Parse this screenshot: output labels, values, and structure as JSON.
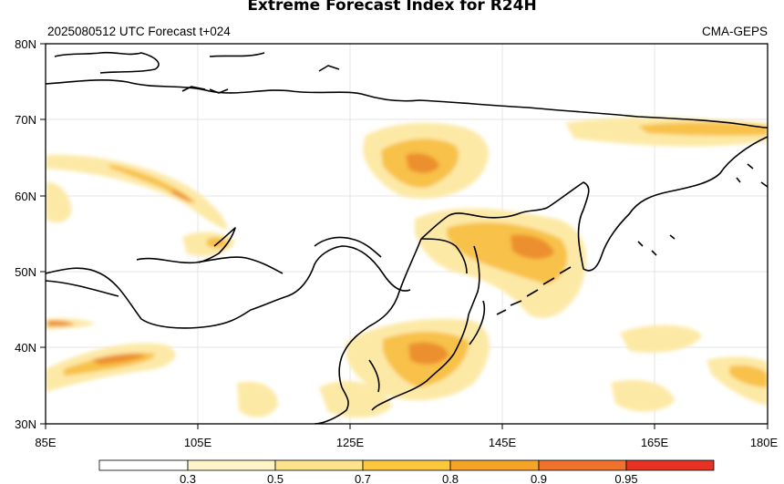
{
  "title": "Extreme Forecast Index for R24H",
  "subtitle_left": "2025080512 UTC Forecast t+024",
  "subtitle_right": "CMA-GEPS",
  "lat_labels": [
    "80N",
    "70N",
    "60N",
    "50N",
    "40N",
    "30N"
  ],
  "lon_labels": [
    "85E",
    "105E",
    "125E",
    "145E",
    "165E",
    "180E"
  ],
  "colorbar": {
    "labels": [
      "0.3",
      "0.5",
      "0.7",
      "0.8",
      "0.9",
      "0.95"
    ],
    "colors": [
      "#ffffff",
      "#fff3c8",
      "#fde48a",
      "#fbc83d",
      "#f6a427",
      "#f0732d",
      "#e63125"
    ]
  },
  "map": {
    "extent": {
      "lon": [
        85,
        180
      ],
      "lat": [
        30,
        80
      ]
    },
    "fill_color_light": "#fde9a6",
    "fill_color_mid": "#f8c14a",
    "fill_color_high": "#ec8f2e",
    "fill_color_max": "#e04a25",
    "coast_color": "#000000",
    "grid_color": "#d8d8d8"
  }
}
